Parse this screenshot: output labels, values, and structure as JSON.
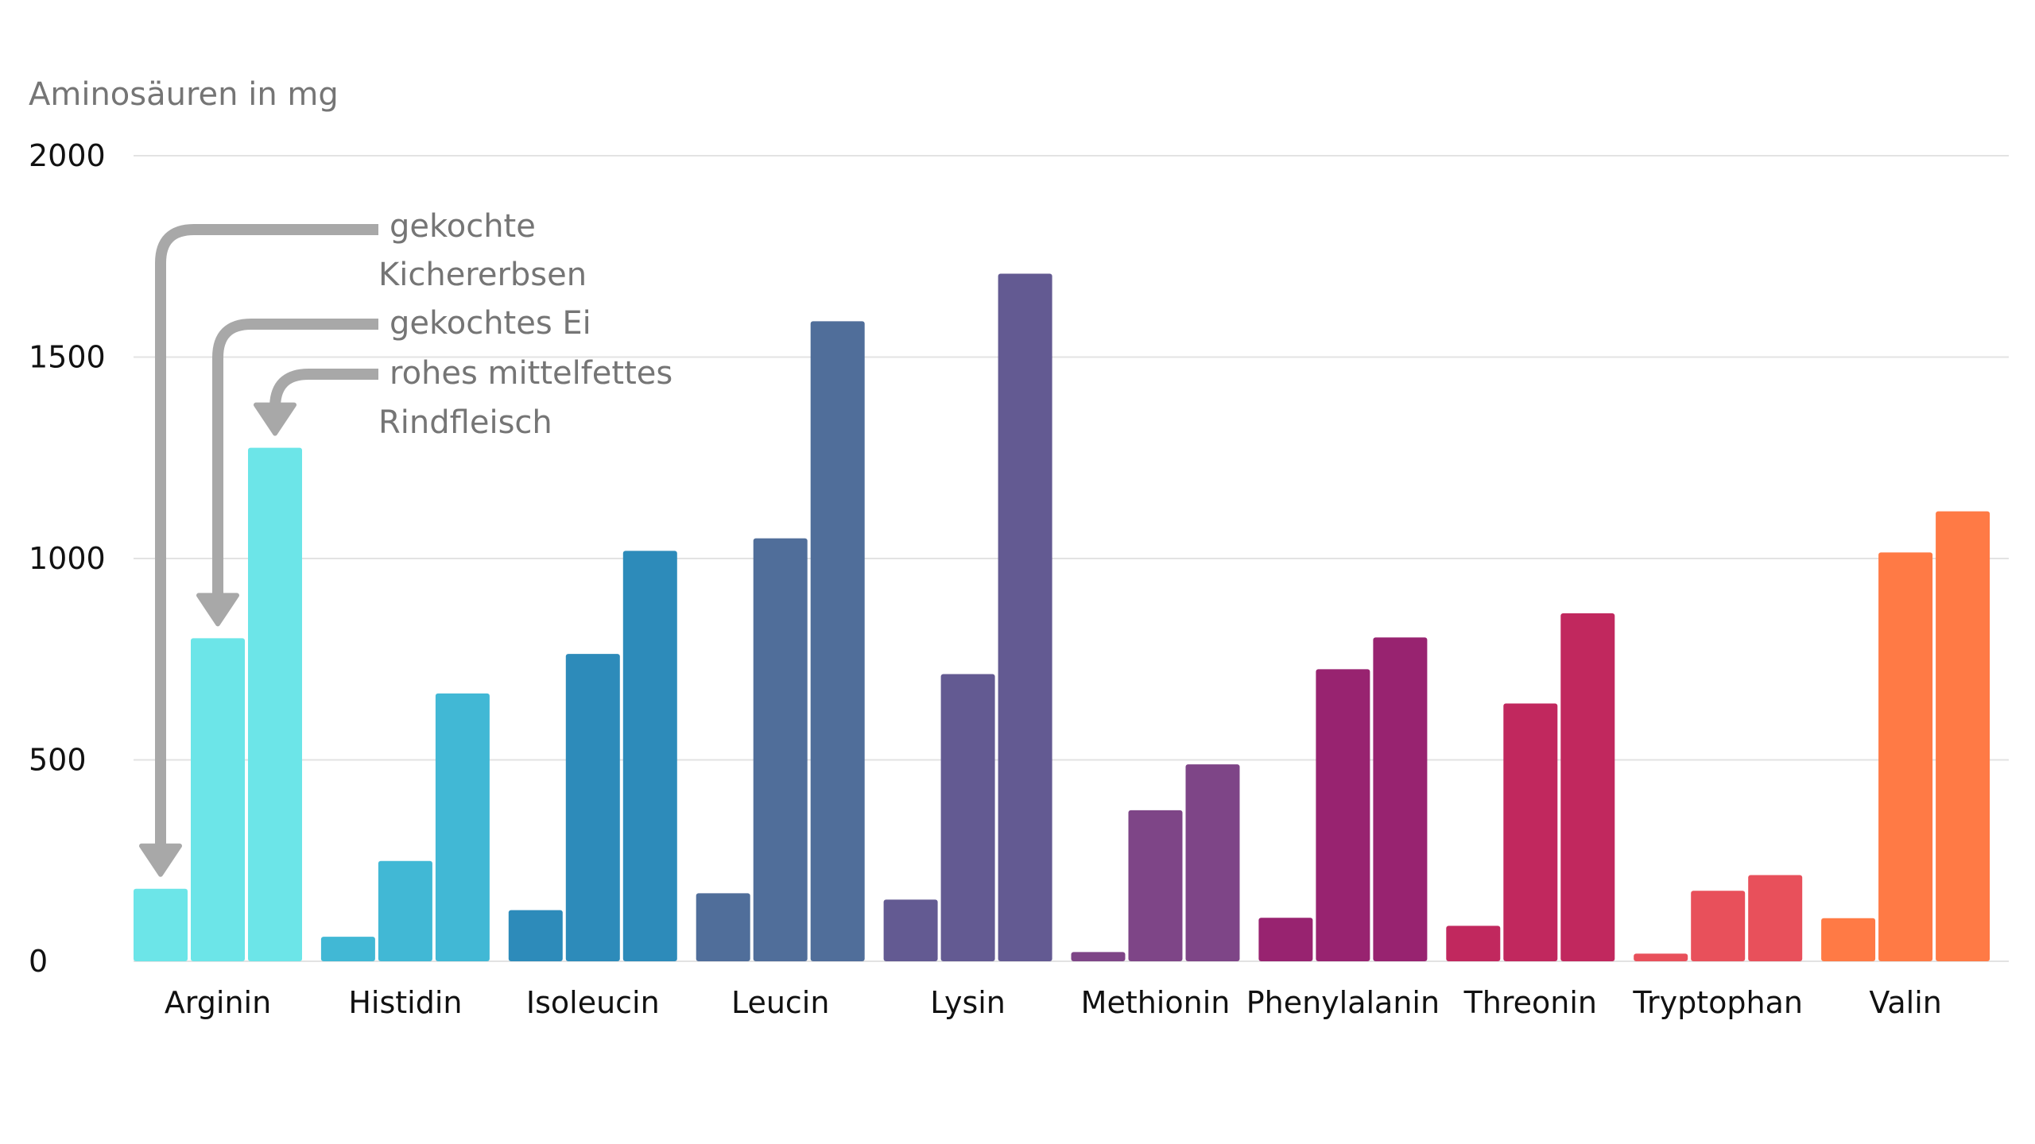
{
  "chart_data": {
    "type": "bar",
    "title": "",
    "ylabel": "Aminosäuren in mg",
    "xlabel": "",
    "ylim": [
      0,
      2000
    ],
    "yticks": [
      0,
      500,
      1000,
      1500,
      2000
    ],
    "ytick_labels": [
      "0",
      "500",
      "1000",
      "1500",
      "2000"
    ],
    "grid": true,
    "legend": "annotations-top-left",
    "categories": [
      "Arginin",
      "Histidin",
      "Isoleucin",
      "Leucin",
      "Lysin",
      "Methionin",
      "Phenylalanin",
      "Threonin",
      "Tryptophan",
      "Valin"
    ],
    "category_colors": [
      "#6ce5e8",
      "#41b8d5",
      "#2d8bba",
      "#506e9a",
      "#635a92",
      "#7e4587",
      "#982370",
      "#c1285e",
      "#e8505b",
      "#ff7a45"
    ],
    "series": [
      {
        "name": "gekochte Kichererbsen",
        "values": [
          180,
          61,
          127,
          169,
          153,
          23,
          108,
          88,
          19,
          107
        ]
      },
      {
        "name": "gekochtes Ei",
        "values": [
          802,
          249,
          763,
          1050,
          713,
          375,
          725,
          640,
          175,
          1015
        ]
      },
      {
        "name": "rohes mittelfettes Rindfleisch",
        "values": [
          1275,
          665,
          1019,
          1589,
          1707,
          489,
          804,
          864,
          214,
          1117
        ]
      }
    ],
    "annotations": [
      {
        "series": 0,
        "lines": [
          "gekochte",
          "Kichererbsen"
        ]
      },
      {
        "series": 1,
        "lines": [
          "gekochtes Ei"
        ]
      },
      {
        "series": 2,
        "lines": [
          "rohes mittelfettes",
          "Rindfleisch"
        ]
      }
    ],
    "annotation_color": "#a8a8a8"
  }
}
